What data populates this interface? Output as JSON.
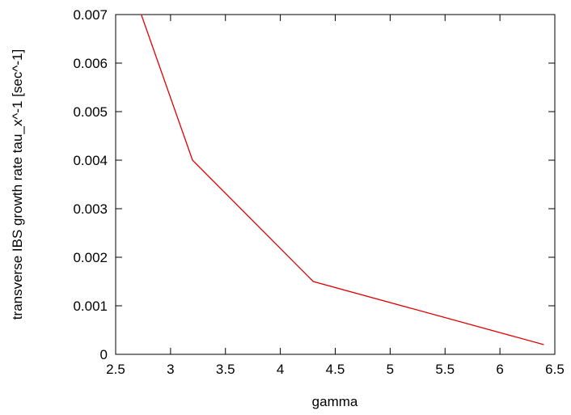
{
  "chart_data": {
    "type": "line",
    "title": "",
    "xlabel": "gamma",
    "ylabel": "transverse IBS growth rate tau_x^-1 [sec^-1]",
    "xlim": [
      2.5,
      6.5
    ],
    "ylim": [
      0,
      0.007
    ],
    "x_ticks": [
      "2.5",
      "3",
      "3.5",
      "4",
      "4.5",
      "5",
      "5.5",
      "6",
      "6.5"
    ],
    "y_ticks": [
      "0",
      "0.001",
      "0.002",
      "0.003",
      "0.004",
      "0.005",
      "0.006",
      "0.007"
    ],
    "grid": false,
    "legend": "none",
    "series": [
      {
        "color": "#dd0000",
        "x": [
          2.5,
          3.2,
          4.3,
          6.4
        ],
        "y": [
          0.0085,
          0.004,
          0.0015,
          0.0002
        ]
      }
    ]
  }
}
